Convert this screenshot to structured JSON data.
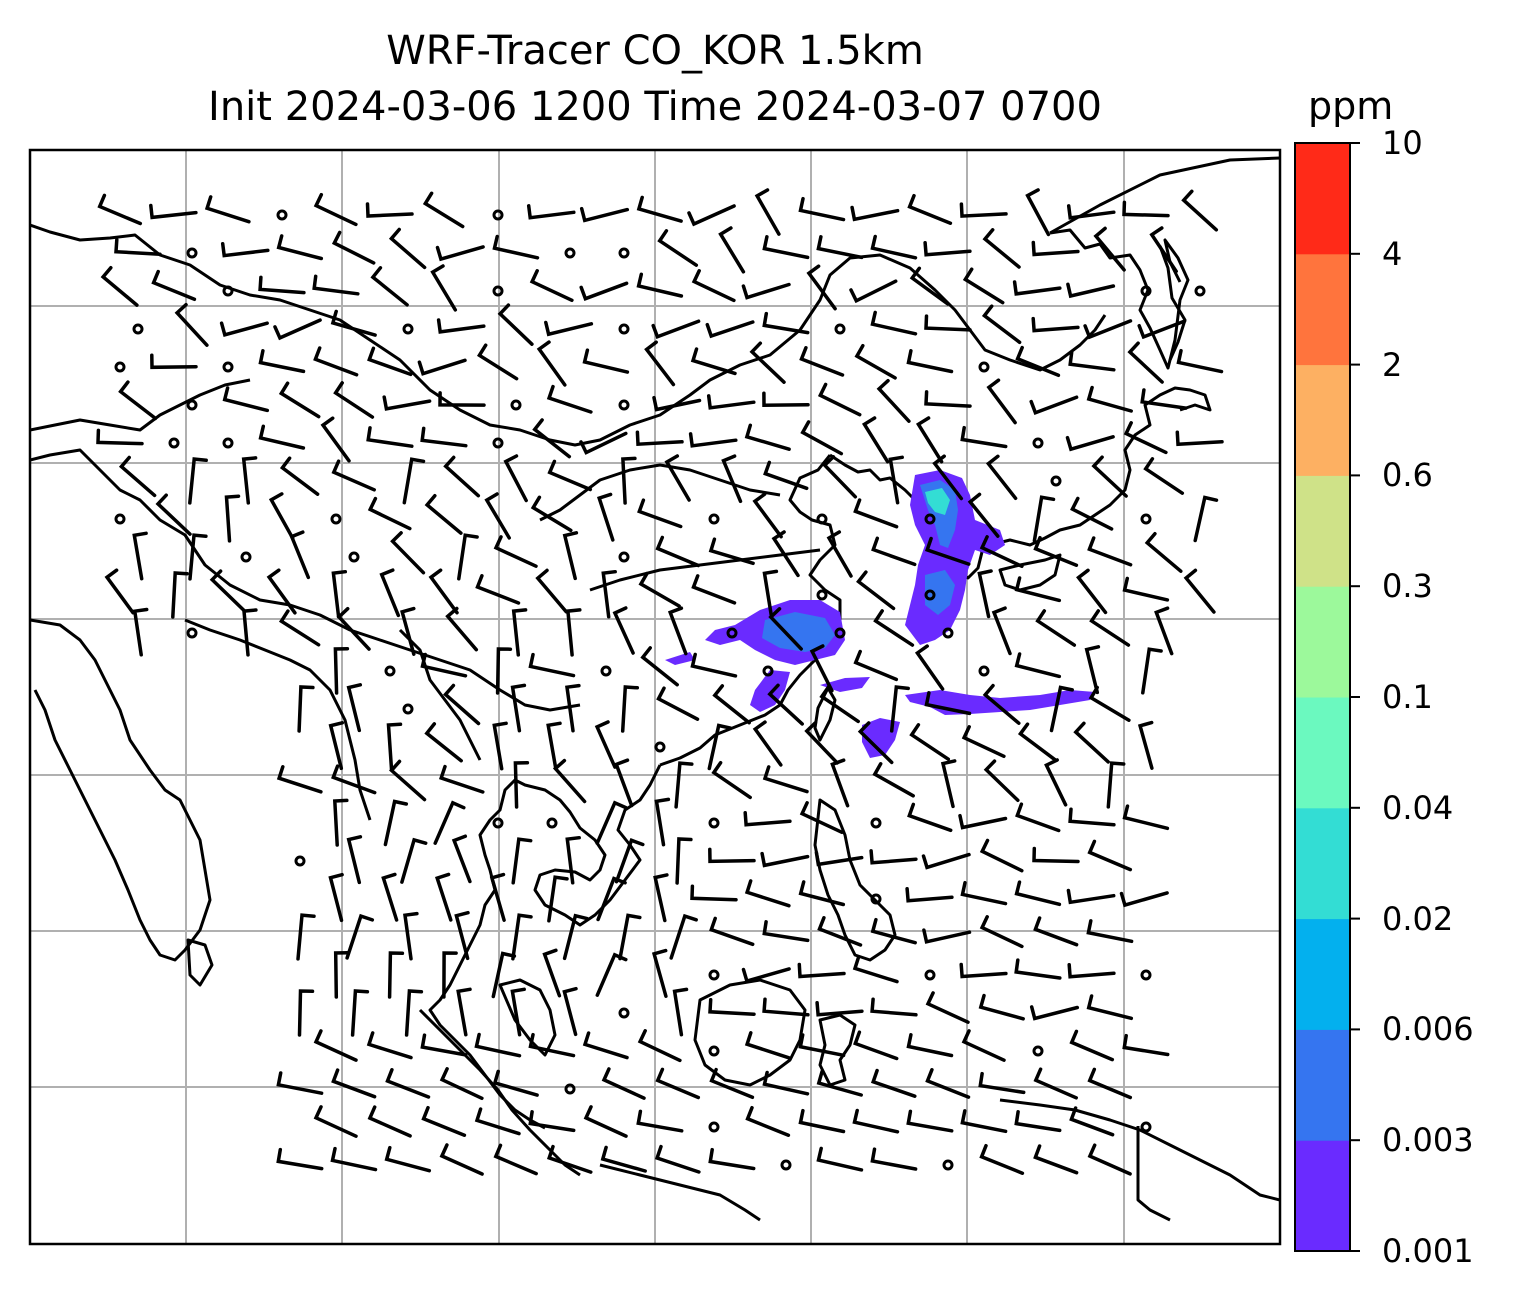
{
  "title": {
    "line1": "WRF-Tracer CO_KOR 1.5km",
    "line2": "Init 2024-03-06 1200 Time 2024-03-07 0700"
  },
  "colorbar": {
    "unit": "ppm",
    "levels": [
      "0.001",
      "0.003",
      "0.006",
      "0.02",
      "0.04",
      "0.1",
      "0.3",
      "0.6",
      "2",
      "4",
      "10"
    ],
    "colors": [
      "#6a2bff",
      "#3575f0",
      "#03b0ee",
      "#33ddd4",
      "#6bf9bf",
      "#9cf99b",
      "#cfe288",
      "#fdb062",
      "#ff743d",
      "#ff2a18"
    ]
  },
  "map": {
    "gridlines": true,
    "field": "tracer CO concentration",
    "overlay": "wind barbs"
  }
}
